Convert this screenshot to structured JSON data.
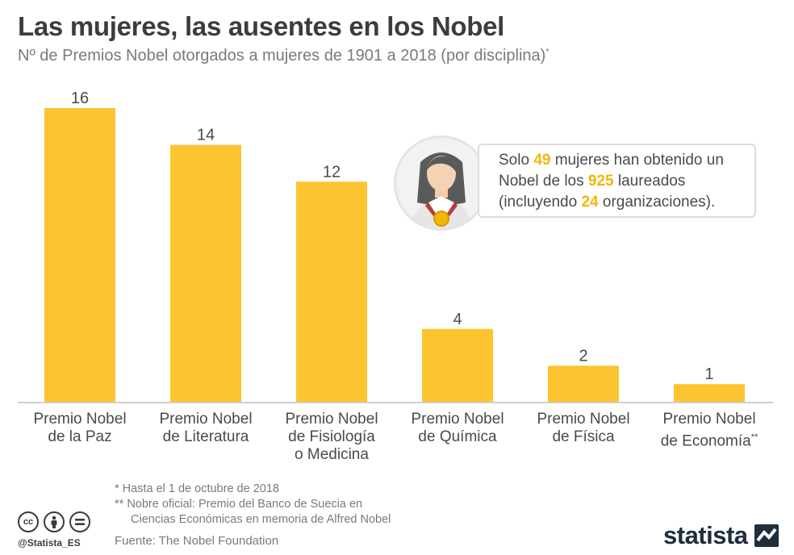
{
  "header": {
    "title": "Las mujeres, las ausentes en los Nobel",
    "subtitle": "Nº de Premios Nobel otorgados a mujeres de 1901 a 2018 (por disciplina)",
    "subtitle_mark": "*"
  },
  "chart_data": {
    "type": "bar",
    "categories": [
      [
        "Premio Nobel",
        "de la Paz"
      ],
      [
        "Premio Nobel",
        "de Literatura"
      ],
      [
        "Premio Nobel",
        "de Fisiología",
        "o Medicina"
      ],
      [
        "Premio Nobel",
        "de Química"
      ],
      [
        "Premio Nobel",
        "de Física"
      ],
      [
        "Premio Nobel",
        "de Economía"
      ]
    ],
    "category_marks": [
      "",
      "",
      "",
      "",
      "",
      "**"
    ],
    "values": [
      16,
      14,
      12,
      4,
      2,
      1
    ],
    "ylim": [
      0,
      16
    ],
    "grid": false,
    "bar_color": "#fcc431"
  },
  "callout": {
    "part1": "Solo ",
    "women": "49",
    "part2": " mujeres han obtenido un Nobel de los ",
    "laureates": "925",
    "part3": " laureados (incluyendo ",
    "orgs": "24",
    "part4": " organizaciones).",
    "icon": "woman-medal-icon"
  },
  "notes": {
    "note1": "*   Hasta el 1 de octubre de 2018",
    "note2_line1": "** Nobre oficial: Premio del Banco de Suecia en",
    "note2_line2": "Ciencias Económicas en memoria de Alfred Nobel"
  },
  "source": "Fuente: The Nobel Foundation",
  "footer": {
    "cc_icons": [
      "cc-icon",
      "person-icon",
      "equals-icon"
    ],
    "cc_text": "cc",
    "handle": "@Statista_ES",
    "logo": "statista"
  },
  "colors": {
    "highlight": "#f2b705",
    "bar": "#fcc431",
    "axis": "#cfcfcf"
  }
}
